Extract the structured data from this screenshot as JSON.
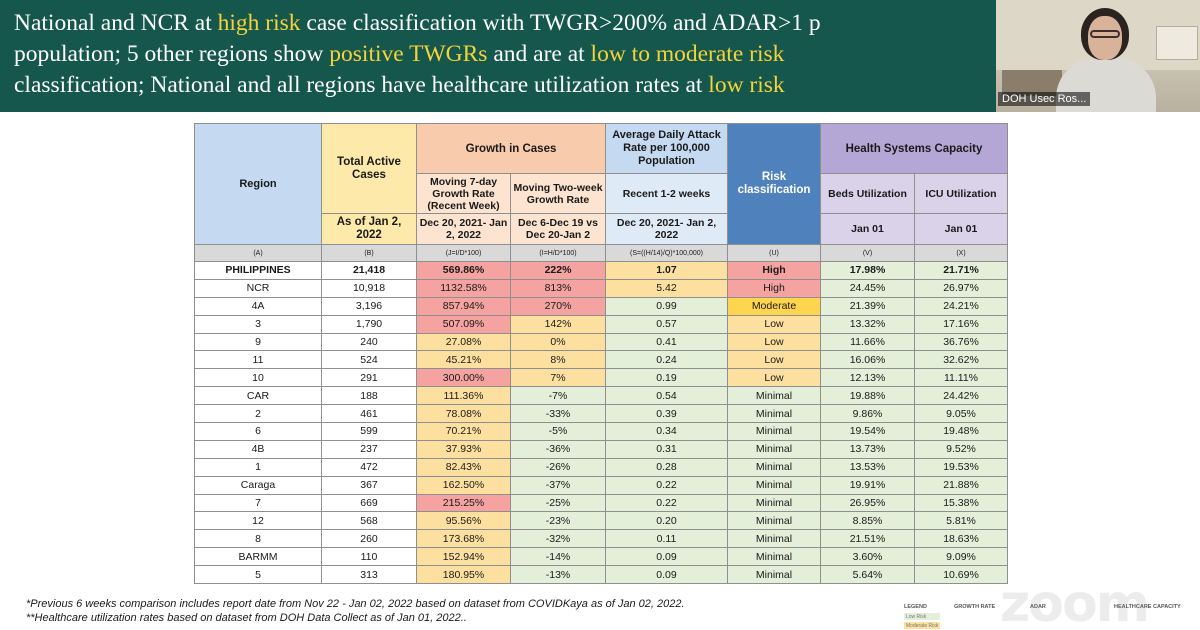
{
  "headline": {
    "line1_a": "National and NCR at ",
    "line1_hl": "high risk",
    "line1_b": " case classification with TWGR>200% and ADAR>1 p",
    "line2_a": "population; 5 other regions show ",
    "line2_hl1": "positive TWGRs",
    "line2_b": " and are at ",
    "line2_hl2": "low to moderate risk",
    "line3_a": "classification; National and all regions have healthcare utilization rates at ",
    "line3_hl": "low risk"
  },
  "video": {
    "participant_name": "DOH Usec Ros..."
  },
  "table": {
    "headers": {
      "region": "Region",
      "total_active": "Total Active Cases",
      "growth": "Growth in Cases",
      "adar": "Average Daily Attack Rate per 100,000 Population",
      "risk": "Risk classification",
      "health": "Health Systems Capacity",
      "moving7": "Moving 7-day Growth Rate (Recent Week)",
      "moving2w": "Moving Two-week Growth Rate",
      "recent": "Recent 1-2 weeks",
      "beds": "Beds Utilization",
      "icu": "ICU Utilization",
      "asof": "As of Jan 2, 2022",
      "range1": "Dec 20, 2021- Jan 2, 2022",
      "range2": "Dec 6-Dec 19 vs Dec 20-Jan 2",
      "range3": "Dec 20, 2021- Jan 2, 2022",
      "jan01a": "Jan 01",
      "jan01b": "Jan 01"
    },
    "letters": [
      "(A)",
      "(B)",
      "(J=I/D*100)",
      "(I=H/D*100)",
      "(S=((H/14)/Q)*100,000)",
      "(U)",
      "(V)",
      "(X)"
    ],
    "rows": [
      {
        "region": "PHILIPPINES",
        "active": "21,418",
        "g7": "569.86%",
        "g7c": "red",
        "g2": "222%",
        "g2c": "red",
        "adar": "1.07",
        "adarc": "yel",
        "risk": "High",
        "riskc": "high",
        "beds": "17.98%",
        "icu": "21.71%"
      },
      {
        "region": "NCR",
        "active": "10,918",
        "g7": "1132.58%",
        "g7c": "red",
        "g2": "813%",
        "g2c": "red",
        "adar": "5.42",
        "adarc": "yel",
        "risk": "High",
        "riskc": "high",
        "beds": "24.45%",
        "icu": "26.97%"
      },
      {
        "region": "4A",
        "active": "3,196",
        "g7": "857.94%",
        "g7c": "red",
        "g2": "270%",
        "g2c": "red",
        "adar": "0.99",
        "adarc": "grn",
        "risk": "Moderate",
        "riskc": "mod",
        "beds": "21.39%",
        "icu": "24.21%"
      },
      {
        "region": "3",
        "active": "1,790",
        "g7": "507.09%",
        "g7c": "red",
        "g2": "142%",
        "g2c": "yel",
        "adar": "0.57",
        "adarc": "grn",
        "risk": "Low",
        "riskc": "low",
        "beds": "13.32%",
        "icu": "17.16%"
      },
      {
        "region": "9",
        "active": "240",
        "g7": "27.08%",
        "g7c": "yel",
        "g2": "0%",
        "g2c": "yel",
        "adar": "0.41",
        "adarc": "grn",
        "risk": "Low",
        "riskc": "low",
        "beds": "11.66%",
        "icu": "36.76%"
      },
      {
        "region": "11",
        "active": "524",
        "g7": "45.21%",
        "g7c": "yel",
        "g2": "8%",
        "g2c": "yel",
        "adar": "0.24",
        "adarc": "grn",
        "risk": "Low",
        "riskc": "low",
        "beds": "16.06%",
        "icu": "32.62%"
      },
      {
        "region": "10",
        "active": "291",
        "g7": "300.00%",
        "g7c": "red",
        "g2": "7%",
        "g2c": "yel",
        "adar": "0.19",
        "adarc": "grn",
        "risk": "Low",
        "riskc": "low",
        "beds": "12.13%",
        "icu": "11.11%"
      },
      {
        "region": "CAR",
        "active": "188",
        "g7": "111.36%",
        "g7c": "yel",
        "g2": "-7%",
        "g2c": "grn",
        "adar": "0.54",
        "adarc": "grn",
        "risk": "Minimal",
        "riskc": "min",
        "beds": "19.88%",
        "icu": "24.42%"
      },
      {
        "region": "2",
        "active": "461",
        "g7": "78.08%",
        "g7c": "yel",
        "g2": "-33%",
        "g2c": "grn",
        "adar": "0.39",
        "adarc": "grn",
        "risk": "Minimal",
        "riskc": "min",
        "beds": "9.86%",
        "icu": "9.05%"
      },
      {
        "region": "6",
        "active": "599",
        "g7": "70.21%",
        "g7c": "yel",
        "g2": "-5%",
        "g2c": "grn",
        "adar": "0.34",
        "adarc": "grn",
        "risk": "Minimal",
        "riskc": "min",
        "beds": "19.54%",
        "icu": "19.48%"
      },
      {
        "region": "4B",
        "active": "237",
        "g7": "37.93%",
        "g7c": "yel",
        "g2": "-36%",
        "g2c": "grn",
        "adar": "0.31",
        "adarc": "grn",
        "risk": "Minimal",
        "riskc": "min",
        "beds": "13.73%",
        "icu": "9.52%"
      },
      {
        "region": "1",
        "active": "472",
        "g7": "82.43%",
        "g7c": "yel",
        "g2": "-26%",
        "g2c": "grn",
        "adar": "0.28",
        "adarc": "grn",
        "risk": "Minimal",
        "riskc": "min",
        "beds": "13.53%",
        "icu": "19.53%"
      },
      {
        "region": "Caraga",
        "active": "367",
        "g7": "162.50%",
        "g7c": "yel",
        "g2": "-37%",
        "g2c": "grn",
        "adar": "0.22",
        "adarc": "grn",
        "risk": "Minimal",
        "riskc": "min",
        "beds": "19.91%",
        "icu": "21.88%"
      },
      {
        "region": "7",
        "active": "669",
        "g7": "215.25%",
        "g7c": "red",
        "g2": "-25%",
        "g2c": "grn",
        "adar": "0.22",
        "adarc": "grn",
        "risk": "Minimal",
        "riskc": "min",
        "beds": "26.95%",
        "icu": "15.38%"
      },
      {
        "region": "12",
        "active": "568",
        "g7": "95.56%",
        "g7c": "yel",
        "g2": "-23%",
        "g2c": "grn",
        "adar": "0.20",
        "adarc": "grn",
        "risk": "Minimal",
        "riskc": "min",
        "beds": "8.85%",
        "icu": "5.81%"
      },
      {
        "region": "8",
        "active": "260",
        "g7": "173.68%",
        "g7c": "yel",
        "g2": "-32%",
        "g2c": "grn",
        "adar": "0.11",
        "adarc": "grn",
        "risk": "Minimal",
        "riskc": "min",
        "beds": "21.51%",
        "icu": "18.63%"
      },
      {
        "region": "BARMM",
        "active": "110",
        "g7": "152.94%",
        "g7c": "yel",
        "g2": "-14%",
        "g2c": "grn",
        "adar": "0.09",
        "adarc": "grn",
        "risk": "Minimal",
        "riskc": "min",
        "beds": "3.60%",
        "icu": "9.09%"
      },
      {
        "region": "5",
        "active": "313",
        "g7": "180.95%",
        "g7c": "yel",
        "g2": "-13%",
        "g2c": "grn",
        "adar": "0.09",
        "adarc": "grn",
        "risk": "Minimal",
        "riskc": "min",
        "beds": "5.64%",
        "icu": "10.69%"
      }
    ]
  },
  "footnotes": {
    "fn1": "*Previous 6 weeks comparison includes report date from Nov 22 - Jan 02, 2022 based on dataset from COVIDKaya as of Jan 02, 2022.",
    "fn2": "**Healthcare utilization rates based on dataset from DOH Data Collect as of Jan 01, 2022.."
  },
  "legend": {
    "title": "LEGEND",
    "growth": "GROWTH RATE",
    "adar": "ADAR",
    "health": "HEALTHCARE CAPACITY",
    "low": "Low Risk",
    "moderate": "Moderate Risk"
  },
  "colors": {
    "banner": "#15574c",
    "highlight": "#f5d33a",
    "high_risk": "#f4a3a0",
    "moderate_risk": "#ffd54f",
    "low_risk": "#fde0a0",
    "minimal_risk": "#e3efd9",
    "risk_header": "#4f81bd"
  }
}
